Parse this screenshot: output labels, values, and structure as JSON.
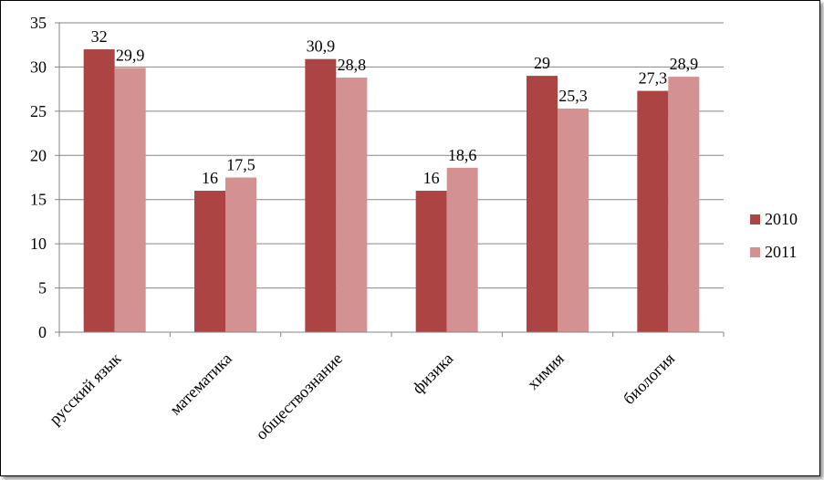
{
  "chart_data": {
    "type": "bar",
    "categories": [
      "русский язык",
      "математика",
      "обществознание",
      "физика",
      "химия",
      "биология"
    ],
    "series": [
      {
        "name": "2010",
        "values": [
          32,
          16,
          30.9,
          16,
          29,
          27.3
        ],
        "labels": [
          "32",
          "16",
          "30,9",
          "16",
          "29",
          "27,3"
        ],
        "color": "#AB4443"
      },
      {
        "name": "2011",
        "values": [
          29.9,
          17.5,
          28.8,
          18.6,
          25.3,
          28.9
        ],
        "labels": [
          "29,9",
          "17,5",
          "28,8",
          "18,6",
          "25,3",
          "28,9"
        ],
        "color": "#D49191"
      }
    ],
    "yticks": [
      "0",
      "5",
      "10",
      "15",
      "20",
      "25",
      "30",
      "35"
    ],
    "ylim": [
      0,
      35
    ],
    "grid": true,
    "legend": "right"
  }
}
